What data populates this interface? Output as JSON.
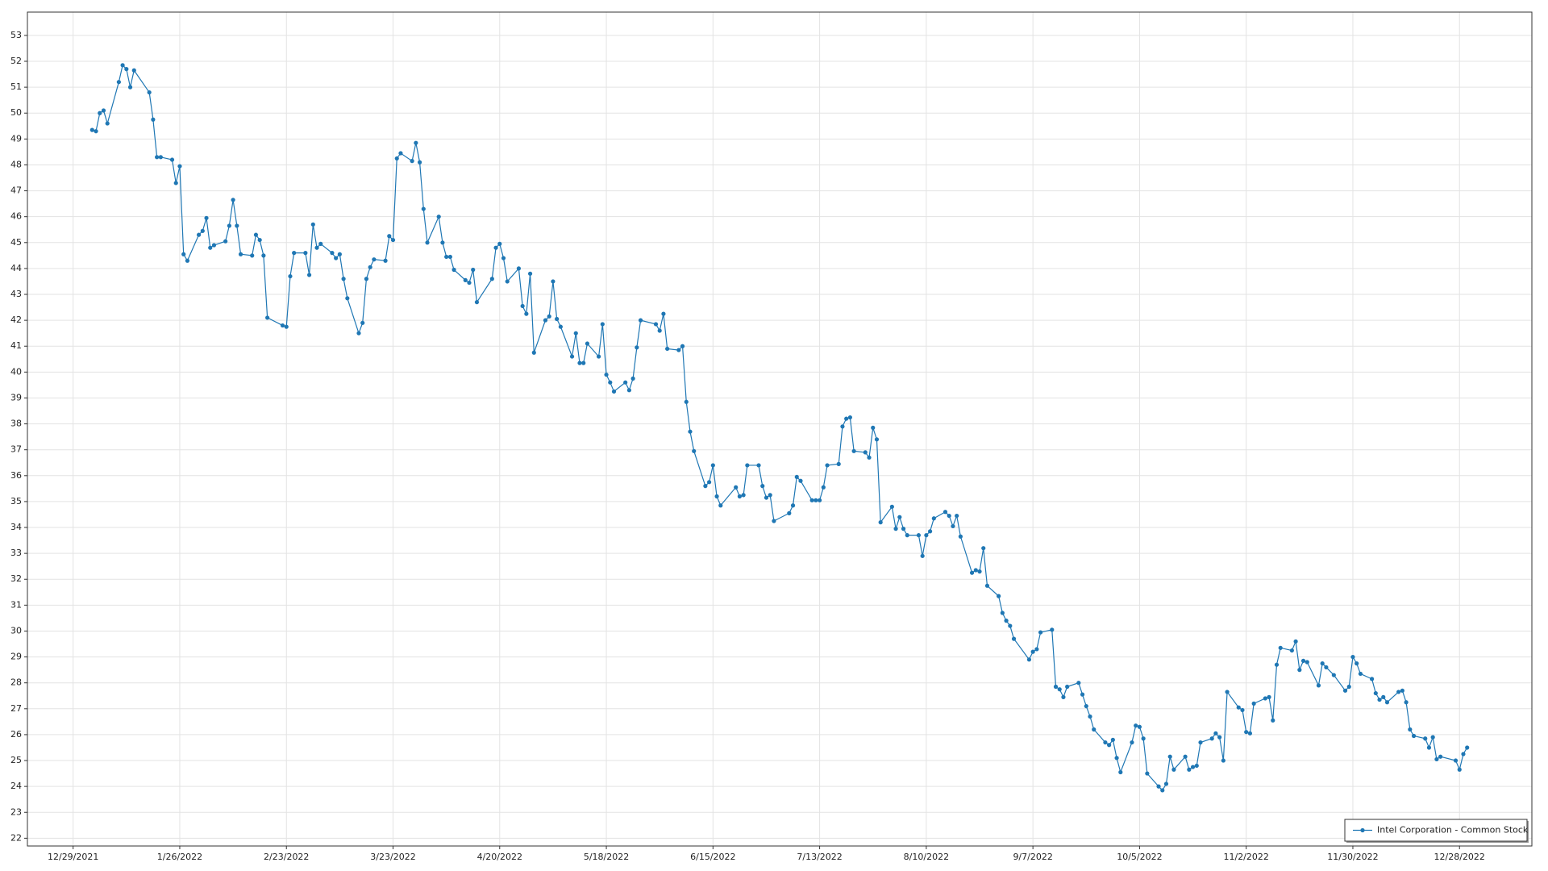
{
  "chart_data": {
    "type": "line",
    "legend": "lower right",
    "grid": true,
    "xlim": [
      "12/17/2021",
      "1/16/2023"
    ],
    "xticks": [
      "12/29/2021",
      "1/26/2022",
      "2/23/2022",
      "3/23/2022",
      "4/20/2022",
      "5/18/2022",
      "6/15/2022",
      "7/13/2022",
      "8/10/2022",
      "9/7/2022",
      "10/5/2022",
      "11/2/2022",
      "11/30/2022",
      "12/28/2022"
    ],
    "ylim": [
      21.7,
      53.9
    ],
    "yticks": [
      22,
      23,
      24,
      25,
      26,
      27,
      28,
      29,
      30,
      31,
      32,
      33,
      34,
      35,
      36,
      37,
      38,
      39,
      40,
      41,
      42,
      43,
      44,
      45,
      46,
      47,
      48,
      49,
      50,
      51,
      52,
      53
    ],
    "x": [
      "1/3/2022",
      "1/4/2022",
      "1/5/2022",
      "1/6/2022",
      "1/7/2022",
      "1/10/2022",
      "1/11/2022",
      "1/12/2022",
      "1/13/2022",
      "1/14/2022",
      "1/18/2022",
      "1/19/2022",
      "1/20/2022",
      "1/21/2022",
      "1/24/2022",
      "1/25/2022",
      "1/26/2022",
      "1/27/2022",
      "1/28/2022",
      "1/31/2022",
      "2/1/2022",
      "2/2/2022",
      "2/3/2022",
      "2/4/2022",
      "2/7/2022",
      "2/8/2022",
      "2/9/2022",
      "2/10/2022",
      "2/11/2022",
      "2/14/2022",
      "2/15/2022",
      "2/16/2022",
      "2/17/2022",
      "2/18/2022",
      "2/22/2022",
      "2/23/2022",
      "2/24/2022",
      "2/25/2022",
      "2/28/2022",
      "3/1/2022",
      "3/2/2022",
      "3/3/2022",
      "3/4/2022",
      "3/7/2022",
      "3/8/2022",
      "3/9/2022",
      "3/10/2022",
      "3/11/2022",
      "3/14/2022",
      "3/15/2022",
      "3/16/2022",
      "3/17/2022",
      "3/18/2022",
      "3/21/2022",
      "3/22/2022",
      "3/23/2022",
      "3/24/2022",
      "3/25/2022",
      "3/28/2022",
      "3/29/2022",
      "3/30/2022",
      "3/31/2022",
      "4/1/2022",
      "4/4/2022",
      "4/5/2022",
      "4/6/2022",
      "4/7/2022",
      "4/8/2022",
      "4/11/2022",
      "4/12/2022",
      "4/13/2022",
      "4/14/2022",
      "4/18/2022",
      "4/19/2022",
      "4/20/2022",
      "4/21/2022",
      "4/22/2022",
      "4/25/2022",
      "4/26/2022",
      "4/27/2022",
      "4/28/2022",
      "4/29/2022",
      "5/2/2022",
      "5/3/2022",
      "5/4/2022",
      "5/5/2022",
      "5/6/2022",
      "5/9/2022",
      "5/10/2022",
      "5/11/2022",
      "5/12/2022",
      "5/13/2022",
      "5/16/2022",
      "5/17/2022",
      "5/18/2022",
      "5/19/2022",
      "5/20/2022",
      "5/23/2022",
      "5/24/2022",
      "5/25/2022",
      "5/26/2022",
      "5/27/2022",
      "5/31/2022",
      "6/1/2022",
      "6/2/2022",
      "6/3/2022",
      "6/6/2022",
      "6/7/2022",
      "6/8/2022",
      "6/9/2022",
      "6/10/2022",
      "6/13/2022",
      "6/14/2022",
      "6/15/2022",
      "6/16/2022",
      "6/17/2022",
      "6/21/2022",
      "6/22/2022",
      "6/23/2022",
      "6/24/2022",
      "6/27/2022",
      "6/28/2022",
      "6/29/2022",
      "6/30/2022",
      "7/1/2022",
      "7/5/2022",
      "7/6/2022",
      "7/7/2022",
      "7/8/2022",
      "7/11/2022",
      "7/12/2022",
      "7/13/2022",
      "7/14/2022",
      "7/15/2022",
      "7/18/2022",
      "7/19/2022",
      "7/20/2022",
      "7/21/2022",
      "7/22/2022",
      "7/25/2022",
      "7/26/2022",
      "7/27/2022",
      "7/28/2022",
      "7/29/2022",
      "8/1/2022",
      "8/2/2022",
      "8/3/2022",
      "8/4/2022",
      "8/5/2022",
      "8/8/2022",
      "8/9/2022",
      "8/10/2022",
      "8/11/2022",
      "8/12/2022",
      "8/15/2022",
      "8/16/2022",
      "8/17/2022",
      "8/18/2022",
      "8/19/2022",
      "8/22/2022",
      "8/23/2022",
      "8/24/2022",
      "8/25/2022",
      "8/26/2022",
      "8/29/2022",
      "8/30/2022",
      "8/31/2022",
      "9/1/2022",
      "9/2/2022",
      "9/6/2022",
      "9/7/2022",
      "9/8/2022",
      "9/9/2022",
      "9/12/2022",
      "9/13/2022",
      "9/14/2022",
      "9/15/2022",
      "9/16/2022",
      "9/19/2022",
      "9/20/2022",
      "9/21/2022",
      "9/22/2022",
      "9/23/2022",
      "9/26/2022",
      "9/27/2022",
      "9/28/2022",
      "9/29/2022",
      "9/30/2022",
      "10/3/2022",
      "10/4/2022",
      "10/5/2022",
      "10/6/2022",
      "10/7/2022",
      "10/10/2022",
      "10/11/2022",
      "10/12/2022",
      "10/13/2022",
      "10/14/2022",
      "10/17/2022",
      "10/18/2022",
      "10/19/2022",
      "10/20/2022",
      "10/21/2022",
      "10/24/2022",
      "10/25/2022",
      "10/26/2022",
      "10/27/2022",
      "10/28/2022",
      "10/31/2022",
      "11/1/2022",
      "11/2/2022",
      "11/3/2022",
      "11/4/2022",
      "11/7/2022",
      "11/8/2022",
      "11/9/2022",
      "11/10/2022",
      "11/11/2022",
      "11/14/2022",
      "11/15/2022",
      "11/16/2022",
      "11/17/2022",
      "11/18/2022",
      "11/21/2022",
      "11/22/2022",
      "11/23/2022",
      "11/25/2022",
      "11/28/2022",
      "11/29/2022",
      "11/30/2022",
      "12/1/2022",
      "12/2/2022",
      "12/5/2022",
      "12/6/2022",
      "12/7/2022",
      "12/8/2022",
      "12/9/2022",
      "12/12/2022",
      "12/13/2022",
      "12/14/2022",
      "12/15/2022",
      "12/16/2022",
      "12/19/2022",
      "12/20/2022",
      "12/21/2022",
      "12/22/2022",
      "12/23/2022",
      "12/27/2022",
      "12/28/2022",
      "12/29/2022",
      "12/30/2022"
    ],
    "series": [
      {
        "name": "Intel Corporation - Common Stock",
        "color": "#1f77b4",
        "values": [
          49.35,
          49.3,
          50.0,
          50.1,
          49.6,
          51.2,
          51.85,
          51.7,
          51.0,
          51.65,
          50.8,
          49.75,
          48.3,
          48.3,
          48.2,
          47.3,
          47.95,
          44.55,
          44.3,
          45.3,
          45.45,
          45.95,
          44.8,
          44.9,
          45.05,
          45.65,
          46.65,
          45.65,
          44.55,
          44.5,
          45.3,
          45.1,
          44.5,
          42.1,
          41.8,
          41.75,
          43.7,
          44.6,
          44.6,
          43.75,
          45.7,
          44.8,
          44.95,
          44.6,
          44.4,
          44.55,
          43.6,
          42.85,
          41.5,
          41.9,
          43.6,
          44.05,
          44.35,
          44.3,
          45.25,
          45.1,
          48.25,
          48.45,
          48.15,
          48.85,
          48.1,
          46.3,
          45.0,
          46.0,
          45.0,
          44.45,
          44.45,
          43.95,
          43.55,
          43.45,
          43.95,
          42.7,
          43.6,
          44.8,
          44.95,
          44.4,
          43.5,
          44.0,
          42.55,
          42.25,
          43.8,
          40.75,
          42.0,
          42.15,
          43.5,
          42.05,
          41.75,
          40.6,
          41.5,
          40.35,
          40.35,
          41.1,
          40.6,
          41.85,
          39.9,
          39.6,
          39.25,
          39.6,
          39.3,
          39.75,
          40.95,
          42.0,
          41.85,
          41.6,
          42.25,
          40.9,
          40.85,
          41.0,
          38.85,
          37.7,
          36.95,
          35.6,
          35.75,
          36.4,
          35.2,
          34.85,
          35.55,
          35.2,
          35.25,
          36.4,
          36.4,
          35.6,
          35.15,
          35.25,
          34.25,
          34.55,
          34.85,
          35.95,
          35.8,
          35.05,
          35.05,
          35.05,
          35.55,
          36.4,
          36.45,
          37.9,
          38.2,
          38.25,
          36.95,
          36.9,
          36.7,
          37.85,
          37.4,
          34.2,
          34.8,
          33.95,
          34.4,
          33.95,
          33.7,
          33.7,
          32.9,
          33.7,
          33.85,
          34.35,
          34.6,
          34.45,
          34.05,
          34.45,
          33.65,
          32.25,
          32.35,
          32.3,
          33.2,
          31.75,
          31.35,
          30.7,
          30.4,
          30.2,
          29.7,
          28.9,
          29.2,
          29.3,
          29.95,
          30.05,
          27.85,
          27.75,
          27.45,
          27.85,
          28.0,
          27.55,
          27.1,
          26.7,
          26.2,
          25.7,
          25.6,
          25.8,
          25.1,
          24.55,
          25.7,
          26.35,
          26.3,
          25.85,
          24.5,
          24.0,
          23.85,
          24.1,
          25.15,
          24.65,
          25.15,
          24.65,
          24.75,
          24.8,
          25.7,
          25.85,
          26.05,
          25.9,
          25.0,
          27.65,
          27.05,
          26.95,
          26.1,
          26.05,
          27.2,
          27.4,
          27.45,
          26.55,
          28.7,
          29.35,
          29.25,
          29.6,
          28.5,
          28.85,
          28.8,
          27.9,
          28.75,
          28.6,
          28.3,
          27.7,
          27.85,
          29.0,
          28.75,
          28.35,
          28.15,
          27.6,
          27.35,
          27.45,
          27.25,
          27.65,
          27.7,
          27.25,
          26.2,
          25.95,
          25.85,
          25.5,
          25.9,
          25.05,
          25.15,
          25.0,
          24.65,
          25.25,
          25.5
        ]
      }
    ]
  }
}
